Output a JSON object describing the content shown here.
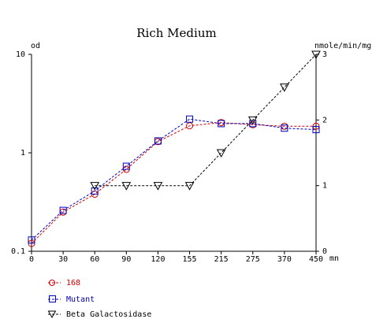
{
  "chart_data": {
    "type": "line",
    "title": "Rich Medium",
    "y_left_label": "od",
    "y_right_label": "nmole/min/mg",
    "x_unit": "mn",
    "x_ticks": [
      0,
      30,
      60,
      90,
      120,
      155,
      215,
      275,
      370,
      450
    ],
    "y_left_ticks": [
      "0.1",
      "1",
      "10"
    ],
    "y_left_tick_values": [
      0.1,
      1,
      10
    ],
    "y_left_scale": "log",
    "y_left_lim": [
      0.1,
      10
    ],
    "y_right_ticks": [
      "0",
      "1",
      "2",
      "3"
    ],
    "y_right_tick_values": [
      0,
      1,
      2,
      3
    ],
    "y_right_lim": [
      0,
      3
    ],
    "legend_position": "bottom-left",
    "series": [
      {
        "name": "168",
        "axis": "left",
        "color": "#d00000",
        "marker": "circle",
        "x": [
          0,
          30,
          60,
          90,
          120,
          155,
          215,
          275,
          370,
          450
        ],
        "y": [
          0.12,
          0.25,
          0.38,
          0.68,
          1.3,
          1.88,
          2.03,
          1.93,
          1.86,
          1.86
        ]
      },
      {
        "name": "Mutant",
        "axis": "left",
        "color": "#0000c0",
        "marker": "square",
        "x": [
          0,
          30,
          60,
          90,
          120,
          155,
          215,
          275,
          370,
          450
        ],
        "y": [
          0.13,
          0.26,
          0.41,
          0.73,
          1.32,
          2.2,
          1.98,
          1.98,
          1.78,
          1.72
        ]
      },
      {
        "name": "Beta Galactosidase",
        "axis": "right",
        "color": "#000000",
        "marker": "triangle-down",
        "x": [
          60,
          90,
          120,
          155,
          215,
          275,
          370,
          450
        ],
        "y": [
          1.0,
          1.0,
          1.0,
          1.0,
          1.5,
          2.0,
          2.5,
          3.0
        ]
      }
    ]
  }
}
